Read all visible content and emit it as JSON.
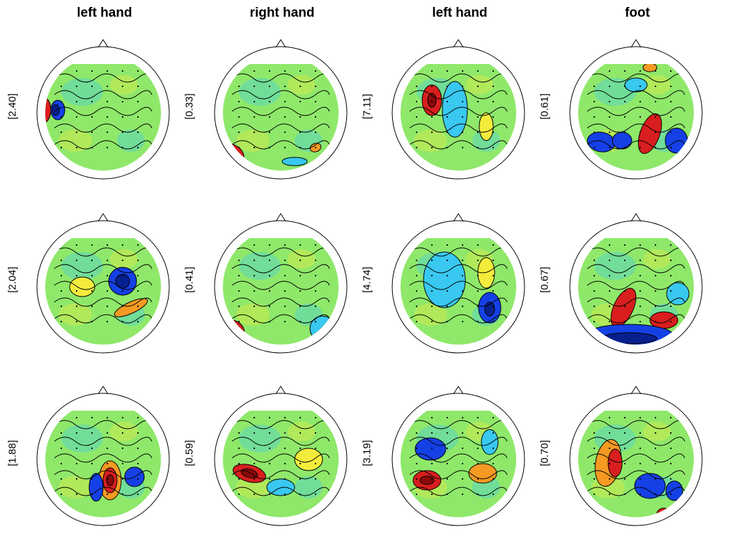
{
  "columns": [
    {
      "title": "left hand"
    },
    {
      "title": "right hand"
    },
    {
      "title": "left hand"
    },
    {
      "title": "foot"
    }
  ],
  "rows": 3,
  "values": [
    [
      "[2.40]",
      "[0.33]",
      "[7.11]",
      "[0.61]"
    ],
    [
      "[2.04]",
      "[0.41]",
      "[4.74]",
      "[0.67]"
    ],
    [
      "[1.88]",
      "[0.59]",
      "[3.19]",
      "[0.70]"
    ]
  ],
  "colors": {
    "base": "#8fe86a",
    "cyan": "#39c8f0",
    "blue": "#1540e6",
    "dark_blue": "#08208e",
    "yellow": "#f4ec3c",
    "orange": "#f59a22",
    "red": "#d81e1e",
    "dark_red": "#8a0a0a",
    "contour": "#000000",
    "head_outline": "#000000"
  }
}
